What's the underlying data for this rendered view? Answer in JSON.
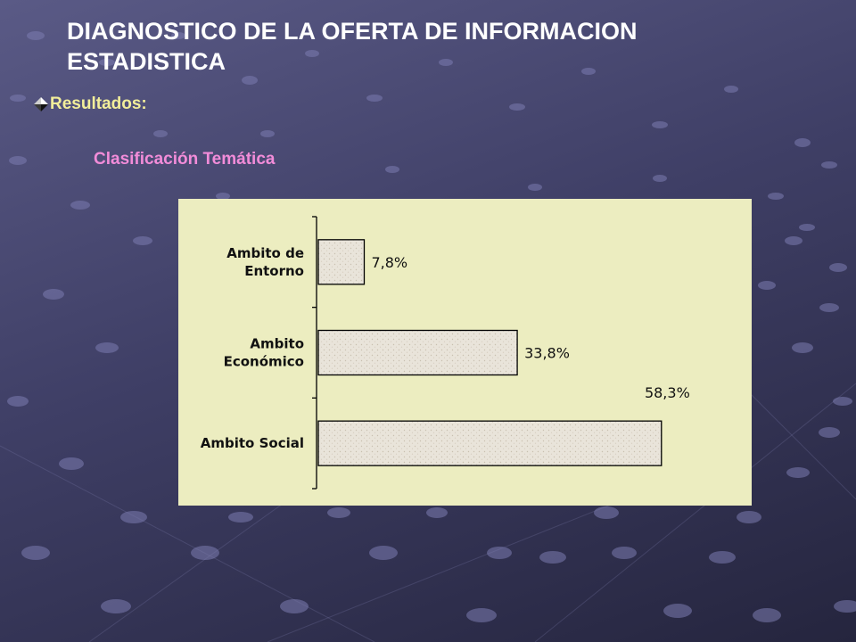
{
  "slide": {
    "title": "DIAGNOSTICO DE LA OFERTA DE INFORMACION ESTADISTICA",
    "bullet_text": "Resultados:",
    "chart_heading": "Clasificación Temática"
  },
  "colors": {
    "title": "#ffffff",
    "bullet_text": "#f2ee9a",
    "chart_heading": "#f28cd9",
    "chart_background": "#ecedc0",
    "bar_fill": "#e9e4da"
  },
  "chart_data": {
    "type": "bar",
    "orientation": "horizontal",
    "categories": [
      [
        "Ambito de",
        "Entorno"
      ],
      [
        "Ambito",
        "Económico"
      ],
      [
        "Ambito Social"
      ]
    ],
    "values": [
      7.8,
      33.8,
      58.3
    ],
    "value_labels": [
      "7,8%",
      "33,8%",
      "58,3%"
    ],
    "xlim": [
      0,
      100
    ],
    "grid": false,
    "legend": "none"
  }
}
